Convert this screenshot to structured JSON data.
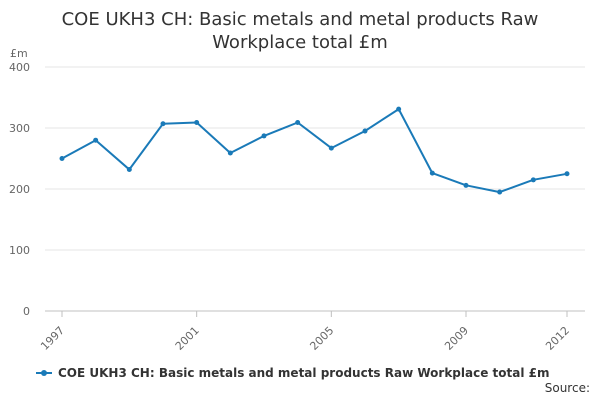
{
  "chart_data": {
    "type": "line",
    "title_lines": [
      "COE UKH3 CH: Basic metals and metal products Raw",
      "Workplace total £m"
    ],
    "unit_label": "£m",
    "ylim": [
      0,
      400
    ],
    "y_ticks": [
      0,
      100,
      200,
      300,
      400
    ],
    "x_ticks": [
      "1997",
      "2001",
      "2005",
      "2009",
      "2012"
    ],
    "xlim": [
      1997,
      2012
    ],
    "grid": true,
    "legend_position": "bottom-left",
    "series": [
      {
        "name": "COE UKH3 CH: Basic metals and metal products Raw Workplace total £m",
        "color": "#1a7ab8",
        "x": [
          1997,
          1998,
          1999,
          2000,
          2001,
          2002,
          2003,
          2004,
          2005,
          2006,
          2007,
          2008,
          2009,
          2010,
          2011,
          2012
        ],
        "values": [
          250,
          280,
          232,
          307,
          309,
          259,
          287,
          309,
          267,
          295,
          331,
          226,
          206,
          195,
          215,
          225
        ]
      }
    ]
  },
  "source_label": "Source:"
}
